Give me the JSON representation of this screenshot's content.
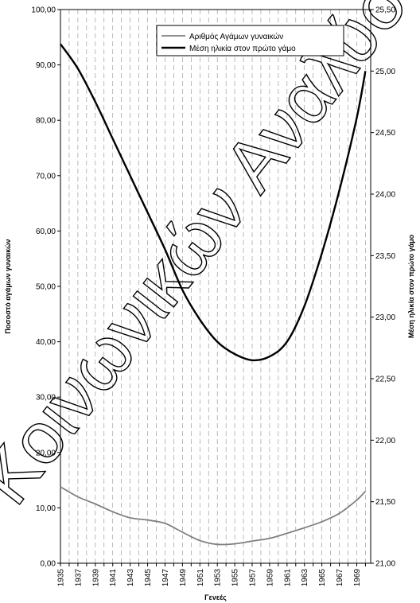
{
  "chart_data": {
    "type": "line",
    "x": [
      1935,
      1937,
      1939,
      1941,
      1943,
      1945,
      1947,
      1949,
      1951,
      1953,
      1955,
      1957,
      1959,
      1961,
      1963,
      1965,
      1967,
      1969,
      1970
    ],
    "x_tick_labels": [
      "1935",
      "1937",
      "1939",
      "1941",
      "1943",
      "1945",
      "1947",
      "1949",
      "1951",
      "1953",
      "1955",
      "1957",
      "1959",
      "1961",
      "1963",
      "1965",
      "1967",
      "1969"
    ],
    "series": [
      {
        "name": "Αριθμός Αγάμων γυναικών",
        "axis": "left",
        "color": "#808080",
        "values": [
          13.8,
          12.0,
          10.7,
          9.3,
          8.2,
          7.8,
          7.2,
          5.6,
          4.1,
          3.4,
          3.5,
          4.0,
          4.5,
          5.4,
          6.4,
          7.5,
          9.0,
          11.4,
          13.0
        ]
      },
      {
        "name": "Μέση ηλικία στον πρώτο γάμο",
        "axis": "right",
        "color": "#000000",
        "values": [
          25.22,
          25.02,
          24.75,
          24.45,
          24.15,
          23.85,
          23.55,
          23.22,
          22.98,
          22.8,
          22.7,
          22.65,
          22.68,
          22.8,
          23.09,
          23.52,
          24.03,
          24.62,
          25.0
        ]
      }
    ],
    "xlabel": "Γενεές",
    "ylabel": "Ποσοστό αγάμων γυναικών",
    "y2label": "Μέση ηλικία στον πρώτο γάμο",
    "ylim": [
      0,
      100
    ],
    "y2lim": [
      21,
      25.5
    ],
    "y_tick_labels": [
      "0,00",
      "10,00",
      "20,00",
      "30,00",
      "40,00",
      "50,00",
      "60,00",
      "70,00",
      "80,00",
      "90,00",
      "100,00"
    ],
    "y2_tick_labels": [
      "21,00",
      "21,50",
      "22,00",
      "22,50",
      "23,00",
      "23,50",
      "24,00",
      "24,50",
      "25,00",
      "25,50"
    ],
    "grid": "vertical dashed",
    "legend_position": "top-center"
  },
  "watermark": "Κοινωνικών Αναλύσεων"
}
